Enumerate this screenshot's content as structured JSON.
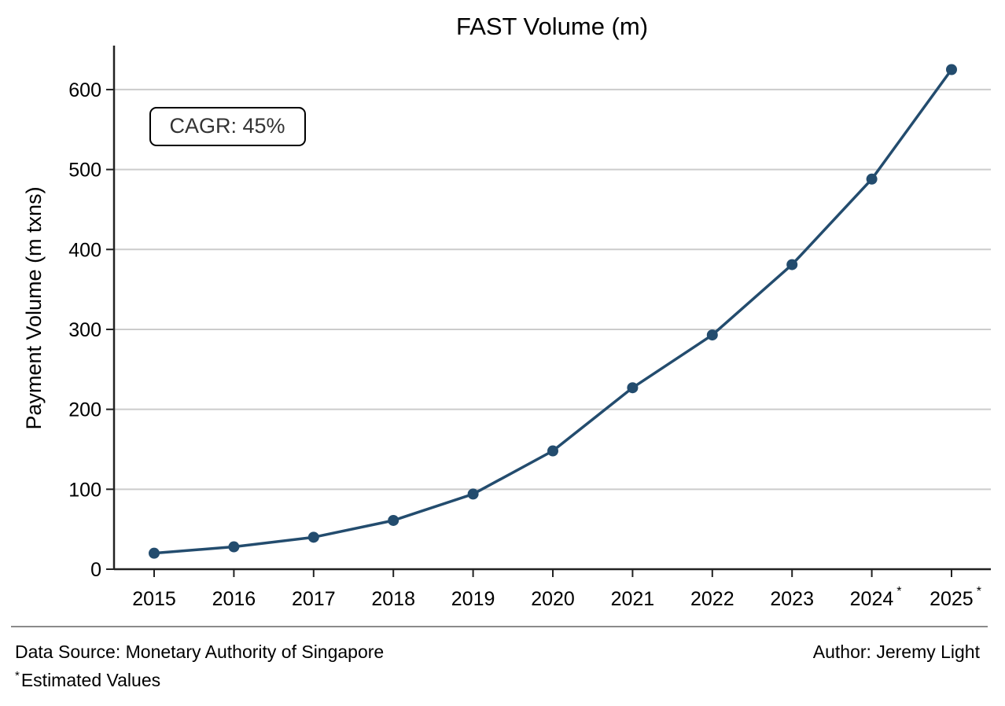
{
  "chart_data": {
    "type": "line",
    "title": "FAST Volume (m)",
    "xlabel": "",
    "ylabel": "Payment Volume (m txns)",
    "categories": [
      "2015",
      "2016",
      "2017",
      "2018",
      "2019",
      "2020",
      "2021",
      "2022",
      "2023",
      "2024",
      "2025"
    ],
    "estimated": [
      false,
      false,
      false,
      false,
      false,
      false,
      false,
      false,
      false,
      true,
      true
    ],
    "estimate_marker": "*",
    "series": [
      {
        "values": [
          20,
          28,
          40,
          61,
          94,
          148,
          227,
          293,
          381,
          488,
          625
        ]
      }
    ],
    "ylim": [
      0,
      655
    ],
    "yticks": [
      0,
      100,
      200,
      300,
      400,
      500,
      600
    ],
    "grid": "horizontal",
    "annotation": "CAGR: 45%",
    "colors": {
      "line": "#234C6E",
      "grid": "#CCCCCC",
      "axis": "#222222"
    }
  },
  "footer": {
    "source": "Data Source: Monetary Authority of Singapore",
    "note_marker": "*",
    "note": "Estimated Values",
    "author": "Author: Jeremy Light"
  }
}
